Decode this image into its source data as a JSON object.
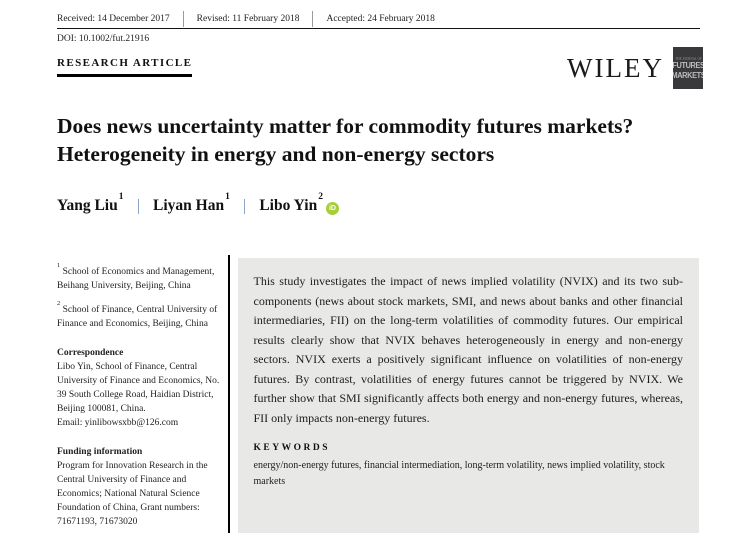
{
  "header": {
    "dates": [
      {
        "text": "Received: 14 December 2017"
      },
      {
        "text": "Revised: 11 February 2018"
      },
      {
        "text": "Accepted: 24 February 2018"
      }
    ],
    "doi": "DOI: 10.1002/fut.21916",
    "article_type": "RESEARCH ARTICLE",
    "publisher": "WILEY",
    "badge": {
      "top": "THE JOURNAL OF",
      "line1": "FUTURES",
      "line2": "MARKETS"
    }
  },
  "title": {
    "line1": "Does news uncertainty matter for commodity futures markets?",
    "line2": "Heterogeneity in energy and non-energy sectors"
  },
  "authors": [
    {
      "name": "Yang Liu",
      "sup": "1"
    },
    {
      "name": "Liyan Han",
      "sup": "1"
    },
    {
      "name": "Libo Yin",
      "sup": "2"
    }
  ],
  "orcid_label": "iD",
  "left_column": {
    "affiliations": [
      {
        "sup": "1",
        "text": "School of Economics and Management, Beihang University, Beijing, China"
      },
      {
        "sup": "2",
        "text": "School of Finance, Central University of Finance and Economics, Beijing, China"
      }
    ],
    "correspondence_heading": "Correspondence",
    "correspondence_body": "Libo Yin, School of Finance, Central University of Finance and Economics, No. 39 South College Road, Haidian District, Beijing 100081, China.",
    "correspondence_email": "Email: yinlibowsxbb@126.com",
    "funding_heading": "Funding information",
    "funding_body": "Program for Innovation Research in the Central University of Finance and Economics; National Natural Science Foundation of China, Grant numbers: 71671193,  71673020"
  },
  "abstract": {
    "text": "This study investigates the impact of news implied volatility (NVIX) and its two sub-components (news about stock markets, SMI, and news about banks and other financial intermediaries, FII) on the long-term volatilities of commodity futures. Our empirical results clearly show that NVIX behaves heterogeneously in energy and non-energy sectors. NVIX exerts a positively significant influence on volatilities of non-energy futures. By contrast, volatilities of energy futures cannot be triggered by NVIX. We further show that SMI significantly affects both energy and non-energy futures, whereas, FII only impacts non-energy futures.",
    "keywords_heading": "KEYWORDS",
    "keywords": "energy/non-energy futures, financial intermediation, long-term volatility, news implied volatility, stock markets"
  },
  "colors": {
    "abstract_bg": "#e8e8e7",
    "author_separator": "#8ba7c7",
    "orcid_green": "#a6ce39",
    "badge_bg": "#39393b"
  }
}
